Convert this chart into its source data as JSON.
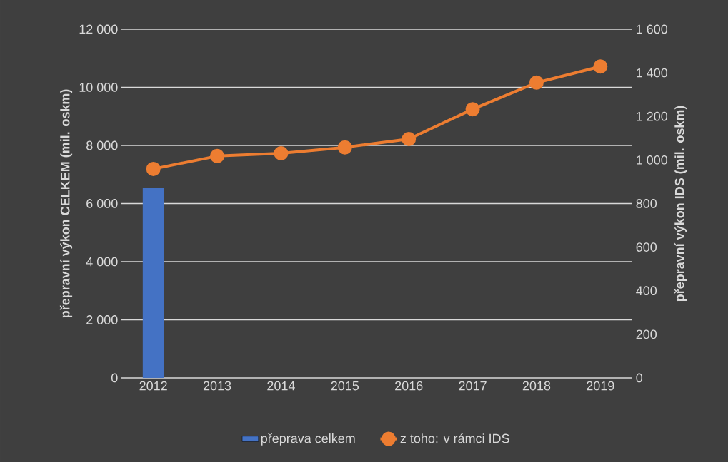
{
  "chart_data": {
    "type": "bar",
    "categories": [
      "2012",
      "2013",
      "2014",
      "2015",
      "2016",
      "2017",
      "2018",
      "2019"
    ],
    "series": [
      {
        "name": "přeprava celkem",
        "color": "#4472c4",
        "values": [
          6550,
          null,
          null,
          null,
          null,
          null,
          null,
          null
        ]
      },
      {
        "name": "z toho: v rámci IDS",
        "type": "line",
        "axis": "y2",
        "color": "#ed7d31",
        "marker": "circle",
        "values": [
          959,
          1018,
          1031,
          1058,
          1096,
          1233,
          1355,
          1429
        ]
      }
    ],
    "ylabel": "přepravní výkon CELKEM  (mil. oskm)",
    "y2label": "přepravní výkon IDS (mil. oskm)",
    "ylim": [
      0,
      12000
    ],
    "yticks": [
      0,
      {
        "value": 2000,
        "label": "2 000"
      },
      {
        "value": 4000,
        "label": "4 000"
      },
      {
        "value": 6000,
        "label": "6 000"
      },
      {
        "value": 8000,
        "label": "8 000"
      },
      {
        "value": 10000,
        "label": "10 000"
      },
      {
        "value": 12000,
        "label": "12 000"
      }
    ],
    "y2lim": [
      0,
      1600
    ],
    "y2ticks": [
      0,
      200,
      400,
      600,
      800,
      {
        "value": 1000,
        "label": "1 000"
      },
      {
        "value": 1200,
        "label": "1 200"
      },
      {
        "value": 1400,
        "label": "1 400"
      },
      {
        "value": 1600,
        "label": "1 600"
      }
    ],
    "grid": "y",
    "legend": "bottom"
  }
}
